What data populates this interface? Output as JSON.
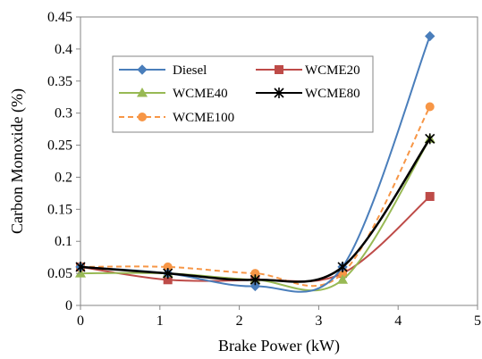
{
  "chart_data": {
    "type": "line",
    "xlabel": "Brake Power (kW)",
    "ylabel": "Carbon Monoxide (%)",
    "xlim": [
      0,
      5
    ],
    "ylim": [
      0,
      0.45
    ],
    "xticks": [
      0,
      1,
      2,
      3,
      4,
      5
    ],
    "yticks": [
      0,
      0.05,
      0.1,
      0.15,
      0.2,
      0.25,
      0.3,
      0.35,
      0.4,
      0.45
    ],
    "ytick_labels": [
      "0",
      "0.05",
      "0.1",
      "0.15",
      "0.2",
      "0.25",
      "0.3",
      "0.35",
      "0.4",
      "0.45"
    ],
    "grid": false,
    "legend_position": "upper-left",
    "x": [
      0,
      1.1,
      2.2,
      3.3,
      4.4
    ],
    "series": [
      {
        "name": "Diesel",
        "values": [
          0.06,
          0.05,
          0.03,
          0.06,
          0.42
        ],
        "color": "#4a7ebb",
        "marker": "diamond",
        "dash": "solid"
      },
      {
        "name": "WCME20",
        "values": [
          0.06,
          0.04,
          0.04,
          0.05,
          0.17
        ],
        "color": "#be4b48",
        "marker": "square",
        "dash": "solid"
      },
      {
        "name": "WCME40",
        "values": [
          0.05,
          0.05,
          0.04,
          0.04,
          0.26
        ],
        "color": "#98b954",
        "marker": "triangle",
        "dash": "solid"
      },
      {
        "name": "WCME80",
        "values": [
          0.06,
          0.05,
          0.04,
          0.06,
          0.26
        ],
        "color": "#000000",
        "marker": "asterisk",
        "dash": "solid"
      },
      {
        "name": "WCME100",
        "values": [
          0.06,
          0.06,
          0.05,
          0.05,
          0.31
        ],
        "color": "#f79646",
        "marker": "circle",
        "dash": "dashed"
      }
    ]
  }
}
